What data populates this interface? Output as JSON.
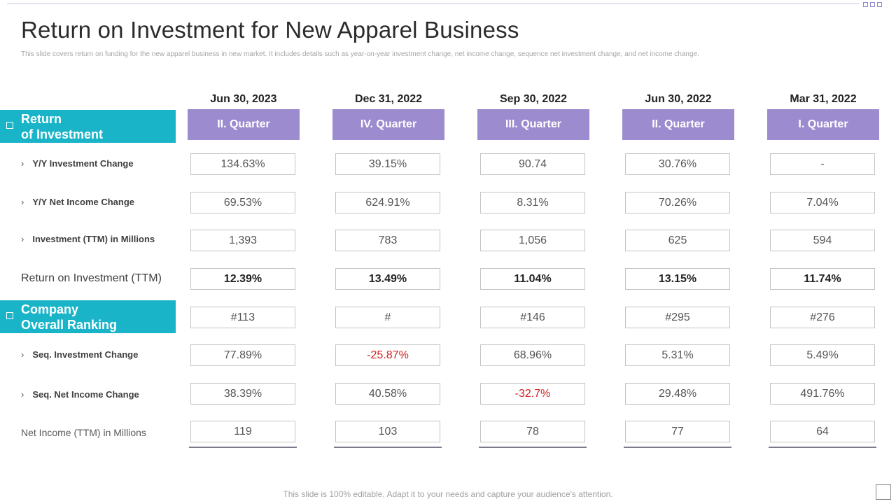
{
  "title": "Return on Investment for New Apparel Business",
  "subtitle": "This slide covers return on funding for the new apparel business in new market. It includes details such as year-on-year investment change, net income change, sequence net investment change, and net income change.",
  "footer": "This slide is 100% editable, Adapt it to your needs and capture your audience's attention.",
  "colors": {
    "accent_teal": "#1ab4c8",
    "quarter_purple": "#9d8bcf",
    "negative_red": "#d42020"
  },
  "sections": [
    {
      "label_line1": "Return",
      "label_line2": "of Investment"
    },
    {
      "label_line1": "Company",
      "label_line2": "Overall Ranking"
    }
  ],
  "columns": [
    {
      "date": "Jun 30, 2023",
      "quarter": "II.  Quarter"
    },
    {
      "date": "Dec 31, 2022",
      "quarter": "IV.  Quarter"
    },
    {
      "date": "Sep 30, 2022",
      "quarter": "III.  Quarter"
    },
    {
      "date": "Jun 30, 2022",
      "quarter": "II.  Quarter"
    },
    {
      "date": "Mar 31, 2022",
      "quarter": "I.  Quarter"
    }
  ],
  "rows": [
    {
      "label": "Y/Y Investment Change",
      "style": "sub",
      "values": [
        "134.63%",
        "39.15%",
        "90.74",
        "30.76%",
        "-"
      ]
    },
    {
      "label": "Y/Y Net Income Change",
      "style": "sub",
      "values": [
        "69.53%",
        "624.91%",
        "8.31%",
        "70.26%",
        "7.04%"
      ]
    },
    {
      "label": "Investment (TTM) in Millions",
      "style": "sub",
      "values": [
        "1,393",
        "783",
        "1,056",
        "625",
        "594"
      ]
    },
    {
      "label": "Return on Investment (TTM)",
      "style": "main",
      "values": [
        "12.39%",
        "13.49%",
        "11.04%",
        "13.15%",
        "11.74%"
      ]
    },
    {
      "label": "",
      "style": "none",
      "values": [
        "#113",
        "#",
        "#146",
        "#295",
        "#276"
      ]
    },
    {
      "label": "Seq. Investment Change",
      "style": "sub",
      "values": [
        "77.89%",
        "-25.87%",
        "68.96%",
        "5.31%",
        "5.49%"
      ]
    },
    {
      "label": "Seq. Net Income Change",
      "style": "sub",
      "values": [
        "38.39%",
        "40.58%",
        "-32.7%",
        "29.48%",
        "491.76%"
      ]
    },
    {
      "label": "Net Income (TTM)  in Millions",
      "style": "light",
      "values": [
        "119",
        "103",
        "78",
        "77",
        "64"
      ]
    }
  ],
  "chevron": "›"
}
